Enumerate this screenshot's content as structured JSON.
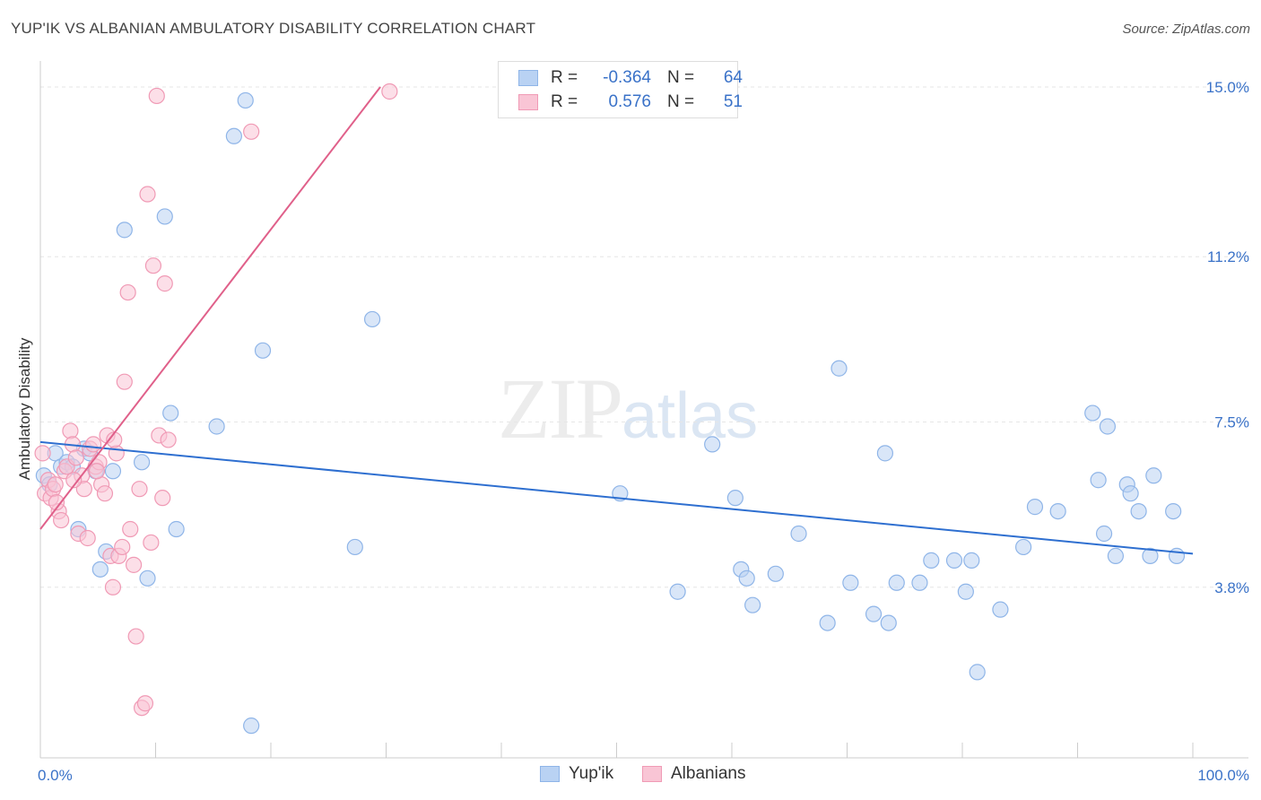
{
  "title": "YUP'IK VS ALBANIAN AMBULATORY DISABILITY CORRELATION CHART",
  "source": "Source: ZipAtlas.com",
  "watermark": {
    "zip": "ZIP",
    "atlas": "atlas"
  },
  "legend": {
    "r_label": "R =",
    "n_label": "N =",
    "rows": [
      {
        "r": "-0.364",
        "n": "64",
        "fill": "#b9d2f3",
        "stroke": "#8fb5e8"
      },
      {
        "r": "0.576",
        "n": "51",
        "fill": "#f9c5d5",
        "stroke": "#f09ab5"
      }
    ]
  },
  "bottom_legend": [
    {
      "label": "Yup'ik",
      "fill": "#b9d2f3",
      "stroke": "#8fb5e8"
    },
    {
      "label": "Albanians",
      "fill": "#f9c5d5",
      "stroke": "#f09ab5"
    }
  ],
  "chart_data": {
    "type": "scatter",
    "title": "YUP'IK VS ALBANIAN AMBULATORY DISABILITY CORRELATION CHART",
    "xlabel": "",
    "ylabel": "Ambulatory Disability",
    "xlim": [
      0,
      100
    ],
    "ylim": [
      0,
      15.5
    ],
    "x_tick_labels": [
      {
        "value": 0,
        "label": "0.0%"
      },
      {
        "value": 100,
        "label": "100.0%"
      }
    ],
    "y_tick_labels": [
      {
        "value": 3.8,
        "label": "3.8%"
      },
      {
        "value": 7.5,
        "label": "7.5%"
      },
      {
        "value": 11.2,
        "label": "11.2%"
      },
      {
        "value": 15.0,
        "label": "15.0%"
      }
    ],
    "grid": true,
    "series": [
      {
        "name": "Yup'ik",
        "color": "#8fb5e8",
        "fill": "#b9d2f3",
        "line_color": "#2e6fd0",
        "trend": {
          "x0": 0,
          "y0": 7.05,
          "x1": 100,
          "y1": 4.55
        },
        "points": [
          [
            0.3,
            6.3
          ],
          [
            0.8,
            6.1
          ],
          [
            1.3,
            6.8
          ],
          [
            1.8,
            6.5
          ],
          [
            2.3,
            6.6
          ],
          [
            2.8,
            6.5
          ],
          [
            3.3,
            5.1
          ],
          [
            3.8,
            6.9
          ],
          [
            4.3,
            6.8
          ],
          [
            4.8,
            6.4
          ],
          [
            5.2,
            4.2
          ],
          [
            5.7,
            4.6
          ],
          [
            6.3,
            6.4
          ],
          [
            7.3,
            11.8
          ],
          [
            8.8,
            6.6
          ],
          [
            9.3,
            4.0
          ],
          [
            10.8,
            12.1
          ],
          [
            11.3,
            7.7
          ],
          [
            11.8,
            5.1
          ],
          [
            15.3,
            7.4
          ],
          [
            16.8,
            13.9
          ],
          [
            17.8,
            14.7
          ],
          [
            18.3,
            0.7
          ],
          [
            19.3,
            9.1
          ],
          [
            27.3,
            4.7
          ],
          [
            28.8,
            9.8
          ],
          [
            50.3,
            5.9
          ],
          [
            55.3,
            3.7
          ],
          [
            58.3,
            7.0
          ],
          [
            60.3,
            5.8
          ],
          [
            60.8,
            4.2
          ],
          [
            61.3,
            4.0
          ],
          [
            61.8,
            3.4
          ],
          [
            63.8,
            4.1
          ],
          [
            65.8,
            5.0
          ],
          [
            68.3,
            3.0
          ],
          [
            69.3,
            8.7
          ],
          [
            70.3,
            3.9
          ],
          [
            72.3,
            3.2
          ],
          [
            73.3,
            6.8
          ],
          [
            73.6,
            3.0
          ],
          [
            74.3,
            3.9
          ],
          [
            76.3,
            3.9
          ],
          [
            77.3,
            4.4
          ],
          [
            79.3,
            4.4
          ],
          [
            80.3,
            3.7
          ],
          [
            80.8,
            4.4
          ],
          [
            81.3,
            1.9
          ],
          [
            83.3,
            3.3
          ],
          [
            85.3,
            4.7
          ],
          [
            86.3,
            5.6
          ],
          [
            88.3,
            5.5
          ],
          [
            91.3,
            7.7
          ],
          [
            91.8,
            6.2
          ],
          [
            92.3,
            5.0
          ],
          [
            92.6,
            7.4
          ],
          [
            93.3,
            4.5
          ],
          [
            94.3,
            6.1
          ],
          [
            94.6,
            5.9
          ],
          [
            95.3,
            5.5
          ],
          [
            96.3,
            4.5
          ],
          [
            96.6,
            6.3
          ],
          [
            98.3,
            5.5
          ],
          [
            98.6,
            4.5
          ]
        ]
      },
      {
        "name": "Albanians",
        "color": "#f09ab5",
        "fill": "#f9c5d5",
        "line_color": "#e0608a",
        "trend": {
          "x0": 0,
          "y0": 5.1,
          "x1": 29.5,
          "y1": 15.0
        },
        "points": [
          [
            0.2,
            6.8
          ],
          [
            0.4,
            5.9
          ],
          [
            0.7,
            6.2
          ],
          [
            0.9,
            5.8
          ],
          [
            1.1,
            6.0
          ],
          [
            1.3,
            6.1
          ],
          [
            1.6,
            5.5
          ],
          [
            1.8,
            5.3
          ],
          [
            2.1,
            6.4
          ],
          [
            2.3,
            6.5
          ],
          [
            2.6,
            7.3
          ],
          [
            2.8,
            7.0
          ],
          [
            3.1,
            6.7
          ],
          [
            3.3,
            5.0
          ],
          [
            3.6,
            6.3
          ],
          [
            3.8,
            6.0
          ],
          [
            4.1,
            4.9
          ],
          [
            4.3,
            6.9
          ],
          [
            4.6,
            7.0
          ],
          [
            4.8,
            6.5
          ],
          [
            5.1,
            6.6
          ],
          [
            5.3,
            6.1
          ],
          [
            5.6,
            5.9
          ],
          [
            5.8,
            7.2
          ],
          [
            6.1,
            4.5
          ],
          [
            6.3,
            3.8
          ],
          [
            6.6,
            6.8
          ],
          [
            6.8,
            4.5
          ],
          [
            7.1,
            4.7
          ],
          [
            7.3,
            8.4
          ],
          [
            7.6,
            10.4
          ],
          [
            7.8,
            5.1
          ],
          [
            8.1,
            4.3
          ],
          [
            8.3,
            2.7
          ],
          [
            8.6,
            6.0
          ],
          [
            8.8,
            1.1
          ],
          [
            9.1,
            1.2
          ],
          [
            9.3,
            12.6
          ],
          [
            9.6,
            4.8
          ],
          [
            9.8,
            11.0
          ],
          [
            10.1,
            14.8
          ],
          [
            10.3,
            7.2
          ],
          [
            10.6,
            5.8
          ],
          [
            10.8,
            10.6
          ],
          [
            11.1,
            7.1
          ],
          [
            18.3,
            14.0
          ],
          [
            30.3,
            14.9
          ],
          [
            2.9,
            6.2
          ],
          [
            4.9,
            6.4
          ],
          [
            6.4,
            7.1
          ],
          [
            1.4,
            5.7
          ]
        ]
      }
    ]
  }
}
